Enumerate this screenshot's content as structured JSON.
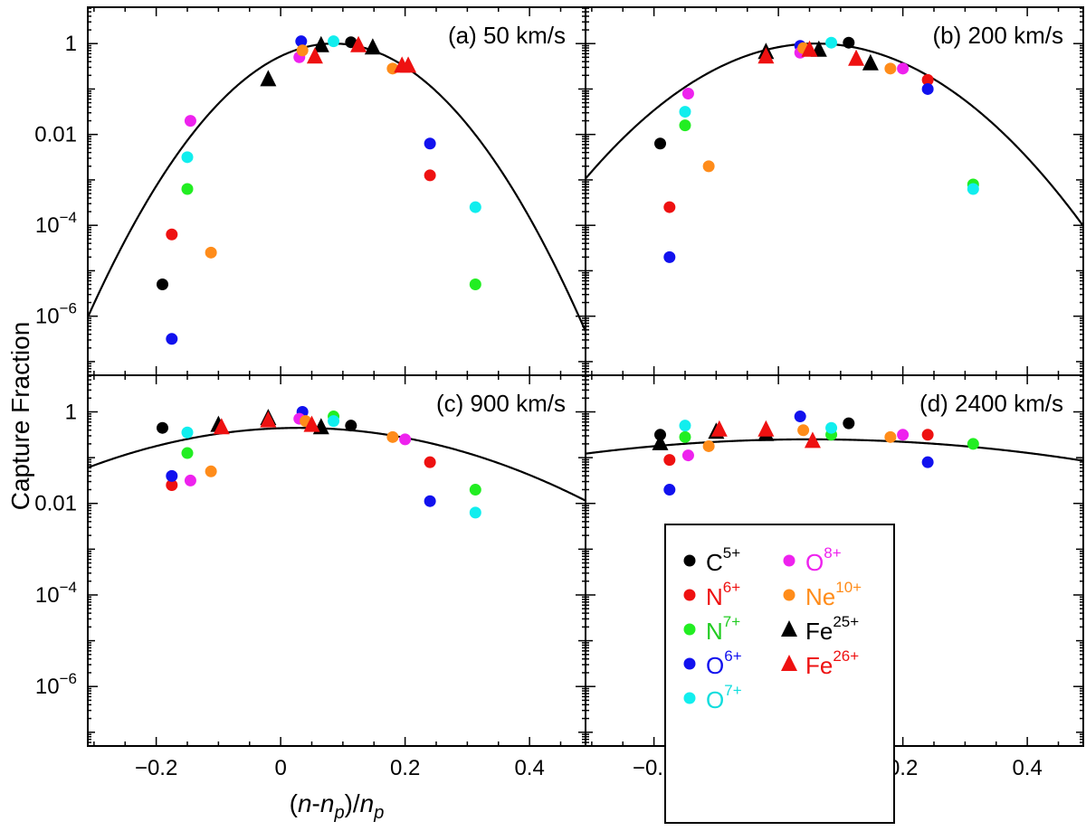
{
  "chart_data": {
    "type": "scatter",
    "ylabel": "Capture Fraction",
    "xlabel": "(n-nₚ)/nₚ",
    "xlabel_parts": {
      "open": "(",
      "n1": "n",
      "dash": "-",
      "n2": "n",
      "sub": "p",
      "close": ")/",
      "n3": "n",
      "sub2": "p"
    },
    "xlim": [
      -0.31,
      0.49
    ],
    "ylim_log10": [
      -7.3,
      0.8
    ],
    "x_ticks": [
      -0.2,
      0,
      0.2,
      0.4
    ],
    "x_tick_labels": [
      "−0.2",
      "0",
      "0.2",
      "0.4"
    ],
    "y_ticks": [
      {
        "exp": 0,
        "label": "1"
      },
      {
        "exp": -2,
        "label": "0.01"
      },
      {
        "exp": -4,
        "base": "10",
        "sup": "−4"
      },
      {
        "exp": -6,
        "base": "10",
        "sup": "−6"
      }
    ],
    "species": [
      {
        "key": "C5",
        "base": "C",
        "sup": "5+",
        "color": "#000000",
        "marker": "circle",
        "text_color": "#000000"
      },
      {
        "key": "N6",
        "base": "N",
        "sup": "6+",
        "color": "#ee1111",
        "marker": "circle",
        "text_color": "#ee1111"
      },
      {
        "key": "N7",
        "base": "N",
        "sup": "7+",
        "color": "#22ee22",
        "marker": "circle",
        "text_color": "#22cc22"
      },
      {
        "key": "O6",
        "base": "O",
        "sup": "6+",
        "color": "#1111ee",
        "marker": "circle",
        "text_color": "#1111ee"
      },
      {
        "key": "O7",
        "base": "O",
        "sup": "7+",
        "color": "#11eeee",
        "marker": "circle",
        "text_color": "#11dddd"
      },
      {
        "key": "O8",
        "base": "O",
        "sup": "8+",
        "color": "#ee22ee",
        "marker": "circle",
        "text_color": "#ee22ee"
      },
      {
        "key": "Ne10",
        "base": "Ne",
        "sup": "10+",
        "color": "#ff8c1a",
        "marker": "circle",
        "text_color": "#ff8c1a"
      },
      {
        "key": "Fe25",
        "base": "Fe",
        "sup": "25+",
        "color": "#000000",
        "marker": "triangle",
        "text_color": "#000000"
      },
      {
        "key": "Fe26",
        "base": "Fe",
        "sup": "26+",
        "color": "#ee1111",
        "marker": "triangle",
        "text_color": "#ee1111"
      }
    ],
    "panels": [
      {
        "title": "(a) 50 km/s",
        "fit": {
          "peak_x": 0.085,
          "peak_log": 0.0,
          "sigma": 0.075
        },
        "points": [
          {
            "s": "C5",
            "x": -0.19,
            "y": -5.3
          },
          {
            "s": "C5",
            "x": 0.113,
            "y": 0.03
          },
          {
            "s": "N6",
            "x": -0.175,
            "y": -4.2
          },
          {
            "s": "N6",
            "x": 0.24,
            "y": -2.9
          },
          {
            "s": "N7",
            "x": -0.15,
            "y": -3.2
          },
          {
            "s": "N7",
            "x": 0.313,
            "y": -5.3
          },
          {
            "s": "O6",
            "x": -0.175,
            "y": -6.5
          },
          {
            "s": "O6",
            "x": 0.033,
            "y": 0.05
          },
          {
            "s": "O6",
            "x": 0.24,
            "y": -2.2
          },
          {
            "s": "O7",
            "x": -0.15,
            "y": -2.5
          },
          {
            "s": "O7",
            "x": 0.085,
            "y": 0.05
          },
          {
            "s": "O7",
            "x": 0.313,
            "y": -3.6
          },
          {
            "s": "O8",
            "x": -0.145,
            "y": -1.7
          },
          {
            "s": "O8",
            "x": 0.03,
            "y": -0.3
          },
          {
            "s": "Ne10",
            "x": -0.112,
            "y": -4.6
          },
          {
            "s": "Ne10",
            "x": 0.035,
            "y": -0.15
          },
          {
            "s": "Ne10",
            "x": 0.18,
            "y": -0.55
          },
          {
            "s": "Fe25",
            "x": -0.02,
            "y": -0.8
          },
          {
            "s": "Fe25",
            "x": 0.065,
            "y": -0.05
          },
          {
            "s": "Fe25",
            "x": 0.148,
            "y": -0.1
          },
          {
            "s": "Fe26",
            "x": 0.055,
            "y": -0.3
          },
          {
            "s": "Fe26",
            "x": 0.125,
            "y": -0.05
          },
          {
            "s": "Fe26",
            "x": 0.195,
            "y": -0.5
          },
          {
            "s": "Fe26",
            "x": 0.205,
            "y": -0.5
          }
        ]
      },
      {
        "title": "(b) 200 km/s",
        "fit": {
          "peak_x": 0.06,
          "peak_log": 0.0,
          "sigma": 0.1
        },
        "points": [
          {
            "s": "C5",
            "x": -0.19,
            "y": -2.2
          },
          {
            "s": "C5",
            "x": 0.113,
            "y": 0.02
          },
          {
            "s": "N6",
            "x": -0.175,
            "y": -3.6
          },
          {
            "s": "N6",
            "x": 0.24,
            "y": -0.8
          },
          {
            "s": "N7",
            "x": -0.15,
            "y": -1.8
          },
          {
            "s": "N7",
            "x": 0.313,
            "y": -3.1
          },
          {
            "s": "O6",
            "x": -0.175,
            "y": -4.7
          },
          {
            "s": "O6",
            "x": 0.035,
            "y": -0.05
          },
          {
            "s": "O6",
            "x": 0.24,
            "y": -1.0
          },
          {
            "s": "O7",
            "x": -0.15,
            "y": -1.5
          },
          {
            "s": "O7",
            "x": 0.085,
            "y": 0.02
          },
          {
            "s": "O7",
            "x": 0.313,
            "y": -3.2
          },
          {
            "s": "O8",
            "x": -0.145,
            "y": -1.1
          },
          {
            "s": "O8",
            "x": 0.035,
            "y": -0.2
          },
          {
            "s": "O8",
            "x": 0.2,
            "y": -0.55
          },
          {
            "s": "Ne10",
            "x": -0.112,
            "y": -2.7
          },
          {
            "s": "Ne10",
            "x": 0.04,
            "y": -0.1
          },
          {
            "s": "Ne10",
            "x": 0.18,
            "y": -0.55
          },
          {
            "s": "Fe25",
            "x": -0.02,
            "y": -0.2
          },
          {
            "s": "Fe25",
            "x": 0.065,
            "y": -0.15
          },
          {
            "s": "Fe25",
            "x": 0.148,
            "y": -0.45
          },
          {
            "s": "Fe26",
            "x": -0.02,
            "y": -0.3
          },
          {
            "s": "Fe26",
            "x": 0.05,
            "y": -0.15
          },
          {
            "s": "Fe26",
            "x": 0.125,
            "y": -0.35
          }
        ]
      },
      {
        "title": "(c) 900 km/s",
        "fit": {
          "peak_x": 0.03,
          "peak_log": -0.35,
          "sigma": 0.17
        },
        "points": [
          {
            "s": "C5",
            "x": -0.19,
            "y": -0.35
          },
          {
            "s": "C5",
            "x": 0.113,
            "y": -0.3
          },
          {
            "s": "N6",
            "x": -0.175,
            "y": -1.6
          },
          {
            "s": "N6",
            "x": 0.24,
            "y": -1.1
          },
          {
            "s": "N7",
            "x": -0.15,
            "y": -0.9
          },
          {
            "s": "N7",
            "x": 0.085,
            "y": -0.1
          },
          {
            "s": "N7",
            "x": 0.313,
            "y": -1.7
          },
          {
            "s": "O6",
            "x": -0.175,
            "y": -1.4
          },
          {
            "s": "O6",
            "x": 0.035,
            "y": 0.0
          },
          {
            "s": "O6",
            "x": 0.24,
            "y": -1.95
          },
          {
            "s": "O7",
            "x": -0.15,
            "y": -0.45
          },
          {
            "s": "O7",
            "x": 0.085,
            "y": -0.2
          },
          {
            "s": "O7",
            "x": 0.313,
            "y": -2.2
          },
          {
            "s": "O8",
            "x": -0.145,
            "y": -1.5
          },
          {
            "s": "O8",
            "x": 0.03,
            "y": -0.15
          },
          {
            "s": "O8",
            "x": 0.2,
            "y": -0.6
          },
          {
            "s": "Ne10",
            "x": -0.112,
            "y": -1.3
          },
          {
            "s": "Ne10",
            "x": 0.04,
            "y": -0.2
          },
          {
            "s": "Ne10",
            "x": 0.18,
            "y": -0.55
          },
          {
            "s": "Fe25",
            "x": -0.1,
            "y": -0.3
          },
          {
            "s": "Fe25",
            "x": -0.02,
            "y": -0.15
          },
          {
            "s": "Fe25",
            "x": 0.065,
            "y": -0.35
          },
          {
            "s": "Fe26",
            "x": -0.095,
            "y": -0.35
          },
          {
            "s": "Fe26",
            "x": -0.02,
            "y": -0.2
          },
          {
            "s": "Fe26",
            "x": 0.05,
            "y": -0.3
          }
        ]
      },
      {
        "title": "(d) 2400 km/s",
        "fit": {
          "peak_x": 0.05,
          "peak_log": -0.6,
          "sigma": 0.3
        },
        "points": [
          {
            "s": "C5",
            "x": -0.19,
            "y": -0.5
          },
          {
            "s": "C5",
            "x": 0.113,
            "y": -0.25
          },
          {
            "s": "N6",
            "x": -0.175,
            "y": -1.05
          },
          {
            "s": "N6",
            "x": 0.24,
            "y": -0.5
          },
          {
            "s": "N7",
            "x": -0.15,
            "y": -0.55
          },
          {
            "s": "N7",
            "x": 0.085,
            "y": -0.5
          },
          {
            "s": "N7",
            "x": 0.313,
            "y": -0.7
          },
          {
            "s": "O6",
            "x": -0.175,
            "y": -1.7
          },
          {
            "s": "O6",
            "x": 0.035,
            "y": -0.1
          },
          {
            "s": "O6",
            "x": 0.24,
            "y": -1.1
          },
          {
            "s": "O7",
            "x": -0.15,
            "y": -0.3
          },
          {
            "s": "O7",
            "x": 0.085,
            "y": -0.35
          },
          {
            "s": "O8",
            "x": -0.145,
            "y": -0.95
          },
          {
            "s": "O8",
            "x": 0.2,
            "y": -0.5
          },
          {
            "s": "Ne10",
            "x": -0.112,
            "y": -0.75
          },
          {
            "s": "Ne10",
            "x": 0.04,
            "y": -0.4
          },
          {
            "s": "Ne10",
            "x": 0.18,
            "y": -0.55
          },
          {
            "s": "Fe25",
            "x": -0.19,
            "y": -0.7
          },
          {
            "s": "Fe25",
            "x": -0.1,
            "y": -0.45
          },
          {
            "s": "Fe25",
            "x": -0.02,
            "y": -0.5
          },
          {
            "s": "Fe26",
            "x": -0.095,
            "y": -0.4
          },
          {
            "s": "Fe26",
            "x": -0.02,
            "y": -0.4
          },
          {
            "s": "Fe26",
            "x": 0.055,
            "y": -0.65
          }
        ]
      }
    ],
    "legend_location": "lower-right of panel (d)"
  }
}
